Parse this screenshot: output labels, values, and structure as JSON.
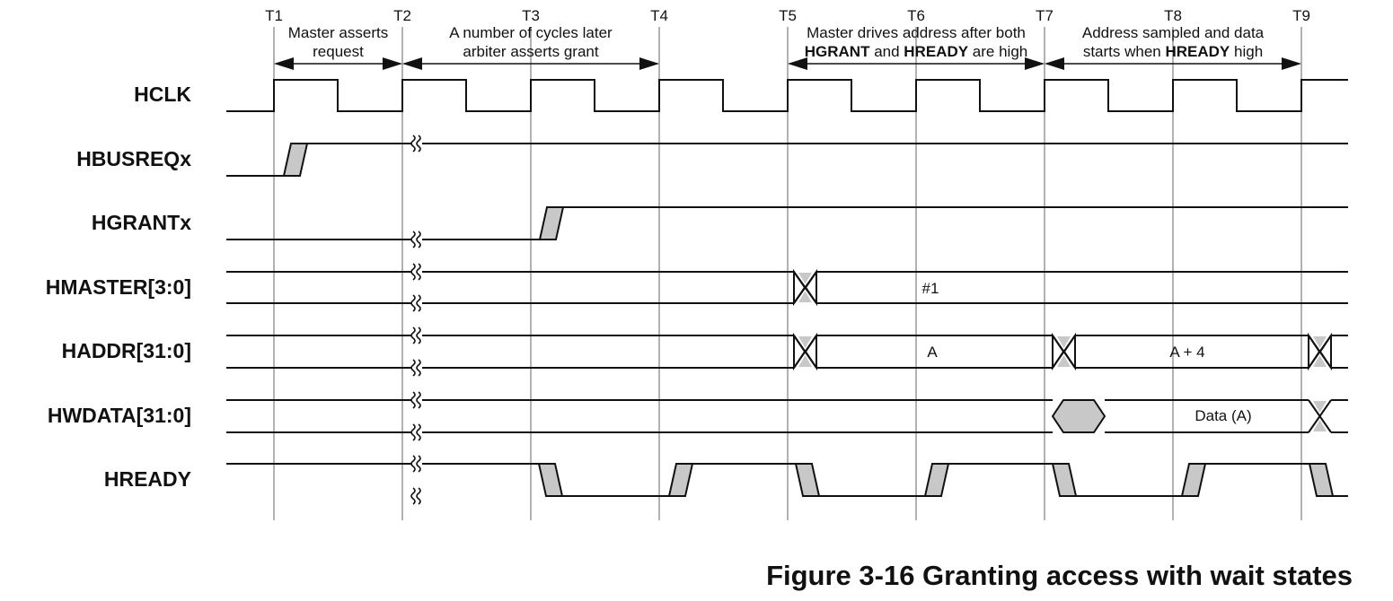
{
  "time_markers": [
    "T1",
    "T2",
    "T3",
    "T4",
    "T5",
    "T6",
    "T7",
    "T8",
    "T9"
  ],
  "annotations": [
    {
      "line1": "Master asserts",
      "line2": "request"
    },
    {
      "line1": "A number of cycles later",
      "line2": "arbiter asserts grant"
    },
    {
      "line1": "Master drives address after both",
      "line2_parts": [
        {
          "text": "HGRANT",
          "bold": true
        },
        {
          "text": " and ",
          "bold": false
        },
        {
          "text": "HREADY",
          "bold": true
        },
        {
          "text": " are high",
          "bold": false
        }
      ]
    },
    {
      "line1": "Address sampled and data",
      "line2_parts": [
        {
          "text": "starts when ",
          "bold": false
        },
        {
          "text": "HREADY",
          "bold": true
        },
        {
          "text": " high",
          "bold": false
        }
      ]
    }
  ],
  "signals": [
    "HCLK",
    "HBUSREQx",
    "HGRANTx",
    "HMASTER[3:0]",
    "HADDR[31:0]",
    "HWDATA[31:0]",
    "HREADY"
  ],
  "bus_values": {
    "hmaster": "#1",
    "haddr_a": "A",
    "haddr_a4": "A + 4",
    "hwdata": "Data (A)"
  },
  "caption": "Figure 3-16 Granting access with wait states",
  "colors": {
    "line": "#111111",
    "transition_fill": "#c8c8c8"
  }
}
